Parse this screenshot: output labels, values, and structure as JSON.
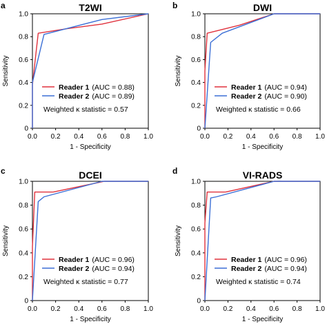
{
  "chart_data": [
    {
      "type": "line",
      "panel_letter": "a",
      "title": "T2WI",
      "xlabel": "1 - Specificity",
      "ylabel": "Sensitivity",
      "xlim": [
        0,
        1
      ],
      "ylim": [
        0,
        1
      ],
      "xticks": [
        "0.0",
        "0.2",
        "0.4",
        "0.6",
        "0.8",
        "1.0"
      ],
      "yticks": [
        "0",
        "0.2",
        "0.4",
        "0.6",
        "0.8",
        "1.0"
      ],
      "legend_position": "bottom-right",
      "series": [
        {
          "name": "Reader 1",
          "auc_label": "(AUC = 0.88)",
          "color": "#e0313c",
          "x": [
            0,
            0,
            0.05,
            0.3,
            0.6,
            1.0
          ],
          "y": [
            0,
            0.38,
            0.83,
            0.87,
            0.91,
            1.0
          ]
        },
        {
          "name": "Reader 2",
          "auc_label": "(AUC = 0.89)",
          "color": "#3b6fd6",
          "x": [
            0,
            0,
            0.1,
            0.6,
            1.0
          ],
          "y": [
            0,
            0.4,
            0.82,
            0.95,
            1.0
          ]
        }
      ],
      "annotation": "Weighted κ statistic = 0.57"
    },
    {
      "type": "line",
      "panel_letter": "b",
      "title": "DWI",
      "xlabel": "1 - Specificity",
      "ylabel": "Sensitivity",
      "xlim": [
        0,
        1
      ],
      "ylim": [
        0,
        1
      ],
      "xticks": [
        "0.0",
        "0.2",
        "0.4",
        "0.6",
        "0.8",
        "1.0"
      ],
      "yticks": [
        "0",
        "0.2",
        "0.4",
        "0.6",
        "0.8",
        "1.0"
      ],
      "legend_position": "bottom-right",
      "series": [
        {
          "name": "Reader 1",
          "auc_label": "(AUC = 0.94)",
          "color": "#e0313c",
          "x": [
            0,
            0,
            0.02,
            0.3,
            0.6,
            1.0
          ],
          "y": [
            0,
            0.5,
            0.83,
            0.9,
            1.0,
            1.0
          ]
        },
        {
          "name": "Reader 2",
          "auc_label": "(AUC = 0.90)",
          "color": "#3b6fd6",
          "x": [
            0,
            0.05,
            0.15,
            0.6,
            1.0
          ],
          "y": [
            0,
            0.75,
            0.83,
            1.0,
            1.0
          ]
        }
      ],
      "annotation": "Weighted κ statistic = 0.66"
    },
    {
      "type": "line",
      "panel_letter": "c",
      "title": "DCEI",
      "xlabel": "1 - Specificity",
      "ylabel": "Sensitivity",
      "xlim": [
        0,
        1
      ],
      "ylim": [
        0,
        1
      ],
      "xticks": [
        "0.0",
        "0.2",
        "0.4",
        "0.6",
        "0.8",
        "1.0"
      ],
      "yticks": [
        "0",
        "0.2",
        "0.4",
        "0.6",
        "0.8",
        "1.0"
      ],
      "legend_position": "bottom-right",
      "series": [
        {
          "name": "Reader 1",
          "auc_label": "(AUC = 0.96)",
          "color": "#e0313c",
          "x": [
            0,
            0,
            0.02,
            0.18,
            0.62,
            1.0
          ],
          "y": [
            0,
            0.45,
            0.91,
            0.91,
            1.0,
            1.0
          ]
        },
        {
          "name": "Reader 2",
          "auc_label": "(AUC = 0.94)",
          "color": "#3b6fd6",
          "x": [
            0,
            0.05,
            0.1,
            0.6,
            1.0
          ],
          "y": [
            0,
            0.83,
            0.87,
            1.0,
            1.0
          ]
        }
      ],
      "annotation": "Weighted κ statistic = 0.77"
    },
    {
      "type": "line",
      "panel_letter": "d",
      "title": "VI-RADS",
      "xlabel": "1 - Specificity",
      "ylabel": "Sensitivity",
      "xlim": [
        0,
        1
      ],
      "ylim": [
        0,
        1
      ],
      "xticks": [
        "0.0",
        "0.2",
        "0.4",
        "0.6",
        "0.8",
        "1.0"
      ],
      "yticks": [
        "0",
        "0.2",
        "0.4",
        "0.6",
        "0.8",
        "1.0"
      ],
      "legend_position": "bottom-right",
      "series": [
        {
          "name": "Reader 1",
          "auc_label": "(AUC = 0.96)",
          "color": "#e0313c",
          "x": [
            0,
            0,
            0.02,
            0.18,
            0.6,
            1.0
          ],
          "y": [
            0,
            0.65,
            0.91,
            0.91,
            1.0,
            1.0
          ]
        },
        {
          "name": "Reader 2",
          "auc_label": "(AUC = 0.94)",
          "color": "#3b6fd6",
          "x": [
            0,
            0.05,
            0.1,
            0.6,
            1.0
          ],
          "y": [
            0,
            0.86,
            0.87,
            1.0,
            1.0
          ]
        }
      ],
      "annotation": "Weighted κ statistic = 0.74"
    }
  ]
}
